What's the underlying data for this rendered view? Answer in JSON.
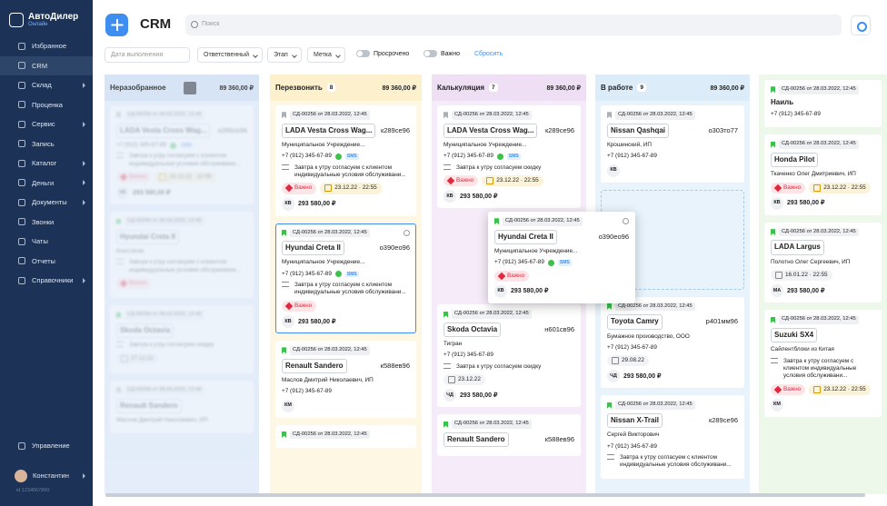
{
  "sidebar": {
    "brand": "АвтоДилер",
    "brand_sub": "Онлайн",
    "menu": [
      {
        "label": "Избранное"
      },
      {
        "label": "CRM",
        "active": true
      },
      {
        "label": "Склад",
        "arrow": true
      },
      {
        "label": "Проценка"
      },
      {
        "label": "Сервис",
        "arrow": true
      },
      {
        "label": "Запись"
      },
      {
        "label": "Каталог",
        "arrow": true
      },
      {
        "label": "Деньги",
        "arrow": true
      },
      {
        "label": "Документы",
        "arrow": true
      },
      {
        "label": "Звонки"
      },
      {
        "label": "Чаты"
      },
      {
        "label": "Отчеты"
      },
      {
        "label": "Справочники",
        "arrow": true
      }
    ],
    "settings": "Управление",
    "user": "Константин",
    "user_id": "id 1234567890"
  },
  "header": {
    "title": "CRM",
    "search_placeholder": "Поиск"
  },
  "filters": {
    "date": "Дата выполнения",
    "responsible": "Ответственный",
    "stage": "Этап",
    "tag": "Метка",
    "overdue": "Просрочено",
    "important": "Важно",
    "reset": "Сбросить"
  },
  "columns": [
    {
      "title": "Неразобранное",
      "total": "89 360,00 ₽",
      "locked": true,
      "color": "#cfe0f5",
      "bg": "#dfeaf8",
      "cards": [
        {
          "id": "СД-00256 от 28.03.2022, 12:45",
          "car": "LADA Vesta Cross Wag...",
          "plate": "к289се96",
          "phone": "+7 (912) 345-67-89",
          "sms": "SMS",
          "comment": "Завтра к утру согласуем с клиентом индивидуальные условия обслуживани...",
          "tag": "Важно",
          "date": "23.12.22 · 22:55",
          "initials": "КВ",
          "amount": "293 580,00 ₽"
        },
        {
          "id": "СД-00256 от 28.03.2022, 12:45",
          "car": "Hyundai Creta II",
          "flag": "green",
          "org": "Констатин",
          "comment": "Завтра к утру согласуем с клиентом индивидуальные условия обслуживани...",
          "tag": "Важно"
        },
        {
          "id": "СД-00256 от 28.03.2022, 12:45",
          "car": "Skoda Octavia",
          "flag": "green",
          "comment": "Завтра к утру согласуем скидку",
          "date": "27.12.22"
        },
        {
          "id": "СД-00256 от 28.03.2022, 12:45",
          "car": "Renault Sandero",
          "org": "Маслов Дмитрий Николаевич, ИП"
        }
      ]
    },
    {
      "title": "Перезвонить",
      "count": "8",
      "total": "89 360,00 ₽",
      "color": "#fcf1cc",
      "bg": "#fdf7e3",
      "cards": [
        {
          "id": "СД-00256 от 28.03.2022, 12:45",
          "car": "LADA Vesta Cross Wag...",
          "plate": "к289се96",
          "org": "Муниципальное Учреждение...",
          "phone": "+7 (912) 345-67-89",
          "sms": "SMS",
          "comment": "Завтра к утру согласуем с клиентом индивидуальные условия обслуживани...",
          "tag": "Важно",
          "date": "23.12.22 · 22:55",
          "initials": "КВ",
          "amount": "293 580,00 ₽"
        },
        {
          "id": "СД-00256 от 28.03.2022, 12:45",
          "flag": "green",
          "selected": true,
          "car": "Hyundai Creta II",
          "plate": "о390ео96",
          "org": "Муниципальное Учреждение...",
          "phone": "+7 (912) 345-67-89",
          "sms": "SMS",
          "comment": "Завтра к утру согласуем с клиентом индивидуальные условия обслуживани...",
          "tag": "Важно",
          "initials": "КВ",
          "amount": "293 580,00 ₽"
        },
        {
          "id": "СД-00256 от 28.03.2022, 12:45",
          "flag": "green",
          "car": "Renault Sandero",
          "plate": "к588ев96",
          "org": "Маслов Дмитрий Николаевич, ИП",
          "phone": "+7 (912) 345-67-89",
          "initials": "КМ"
        },
        {
          "id": "СД-00256 от 28.03.2022, 12:45",
          "flag": "green"
        }
      ]
    },
    {
      "title": "Калькуляция",
      "count": "7",
      "total": "89 360,00 ₽",
      "color": "#efdff5",
      "bg": "#f6ecf9",
      "cards": [
        {
          "id": "СД-00256 от 28.03.2022, 12:45",
          "car": "LADA Vesta Cross Wag...",
          "plate": "к289се96",
          "org": "Муниципальное Учреждение...",
          "phone": "+7 (912) 345-67-89",
          "sms": "SMS",
          "comment": "Завтра к утру согласуем скидку",
          "tag": "Важно",
          "date": "23.12.22 · 22:55",
          "initials": "КВ",
          "amount": "293 580,00 ₽",
          "space_after": true
        },
        {
          "id": "СД-00256 от 28.03.2022, 12:45",
          "flag": "green",
          "car": "Skoda Octavia",
          "plate": "н601св96",
          "org": "Тигран",
          "phone": "+7 (912) 345-67-89",
          "comment": "Завтра к утру согласуем скидку",
          "date": "23.12.22",
          "initials": "ЧД",
          "amount": "293 580,00 ₽"
        },
        {
          "id": "СД-00256 от 28.03.2022, 12:45",
          "flag": "green",
          "car": "Renault Sandero",
          "plate": "к588ев96"
        }
      ]
    },
    {
      "title": "В работе",
      "count": "9",
      "total": "89 360,00 ₽",
      "color": "#dcedf9",
      "bg": "#e8f3fb",
      "cards": [
        {
          "id": "СД-00256 от 28.03.2022, 12:45",
          "car": "Nissan Qashqai",
          "plate": "о303то77",
          "org": "Крошинский, ИП",
          "phone": "+7 (912) 345-67-89",
          "initials": "КВ",
          "drop_after": true
        },
        {
          "id": "СД-00256 от 28.03.2022, 12:45",
          "flag": "green",
          "car": "Toyota Camry",
          "plate": "р401мм96",
          "org": "Бумажное производство, ООО",
          "phone": "+7 (912) 345-67-89",
          "date": "29.08.22",
          "initials": "ЧД",
          "amount": "293 580,00 ₽"
        },
        {
          "id": "СД-00256 от 28.03.2022, 12:45",
          "flag": "green",
          "car": "Nissan X-Trail",
          "plate": "к289се96",
          "org": "Сергей Викторович",
          "phone": "+7 (912) 345-67-89",
          "comment": "Завтра к утру согласуем с клиентом индивидуальные условия обслуживани..."
        }
      ]
    },
    {
      "color": "#e3f3e0",
      "bg": "#edf8eb",
      "cards": [
        {
          "id": "СД-00256 от 28.03.2022, 12:45",
          "flag": "green",
          "name": "Наиль",
          "phone": "+7 (912) 345-67-89"
        },
        {
          "id": "СД-00256 от 28.03.2022, 12:45",
          "flag": "green",
          "car": "Honda Pilot",
          "org": "Ткаченко Олег Дмитриевич, ИП",
          "tag": "Важно",
          "date": "23.12.22 · 22:55",
          "initials": "КВ",
          "amount": "293 580,00 ₽"
        },
        {
          "id": "СД-00256 от 28.03.2022, 12:45",
          "flag": "green",
          "car": "LADA Largus",
          "org": "Полотно Олег Сергеевич, ИП",
          "date": "16.01.22 · 22:55",
          "initials": "МА",
          "amount": "293 580,00 ₽"
        },
        {
          "id": "СД-00256 от 28.03.2022, 12:45",
          "flag": "green",
          "car": "Suzuki SX4",
          "org": "Сайлентблоки из Китая",
          "comment": "Завтра к утру согласуем с клиентом индивидуальные условия обслуживани...",
          "tag": "Важно",
          "date": "23.12.22 · 22:55",
          "initials": "КМ"
        }
      ]
    }
  ],
  "dragged": {
    "id": "СД-00256 от 28.03.2022, 12:45",
    "flag": "green",
    "gear": true,
    "car": "Hyundai Creta II",
    "plate": "о390ео96",
    "org": "Муниципальное Учреждение...",
    "phone": "+7 (912) 345-67-89",
    "sms": "SMS",
    "tag": "Важно",
    "initials": "КВ",
    "amount": "293 580,00 ₽"
  }
}
